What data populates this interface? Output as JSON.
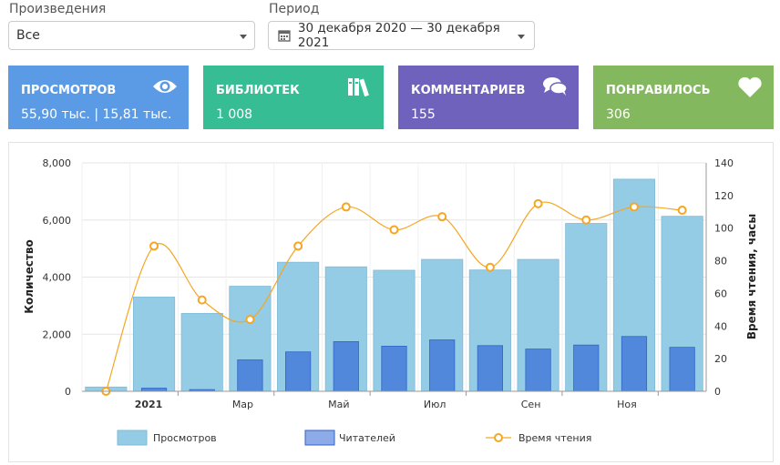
{
  "filters": {
    "works_label": "Произведения",
    "works_value": "Все",
    "period_label": "Период",
    "period_value": "30 декабря 2020 — 30 декабря 2021"
  },
  "cards": [
    {
      "title": "ПРОСМОТРОВ",
      "value": "55,90 тыс. | 15,81 тыс.",
      "color": "#5b9be6",
      "icon": "eye-icon"
    },
    {
      "title": "БИБЛИОТЕК",
      "value": "1 008",
      "color": "#36bd94",
      "icon": "books-icon"
    },
    {
      "title": "КОММЕНТАРИЕВ",
      "value": "155",
      "color": "#6f62bd",
      "icon": "comments-icon"
    },
    {
      "title": "ПОНРАВИЛОСЬ",
      "value": "306",
      "color": "#84b85f",
      "icon": "heart-icon"
    }
  ],
  "chart_data": {
    "type": "bar",
    "ylabel": "Количество",
    "y2label": "Время чтения, часы",
    "ylim": [
      0,
      8000
    ],
    "y2lim": [
      0,
      140
    ],
    "yticks": [
      "0",
      "2,000",
      "4,000",
      "6,000",
      "8,000"
    ],
    "y2ticks": [
      "0",
      "20",
      "40",
      "60",
      "80",
      "100",
      "120",
      "140"
    ],
    "xticks": [
      "2021",
      "Мар",
      "Май",
      "Июл",
      "Сен",
      "Ноя"
    ],
    "grid": true,
    "legend_position": "bottom",
    "series": [
      {
        "name": "Просмотров",
        "type": "bar",
        "color": "#94cbe5",
        "values": [
          150,
          3300,
          2730,
          3680,
          4520,
          4360,
          4240,
          4620,
          4250,
          4620,
          5880,
          7430,
          6130
        ]
      },
      {
        "name": "Читателей",
        "type": "bar",
        "color": "#5288dc",
        "values": [
          0,
          110,
          60,
          1100,
          1380,
          1740,
          1580,
          1800,
          1600,
          1480,
          1620,
          1920,
          1540
        ]
      },
      {
        "name": "Время чтения",
        "type": "line",
        "axis": "right",
        "color": "#f5a623",
        "values": [
          0,
          89,
          56,
          44,
          89,
          113,
          99,
          107,
          76,
          115,
          105,
          113,
          111
        ]
      }
    ]
  }
}
